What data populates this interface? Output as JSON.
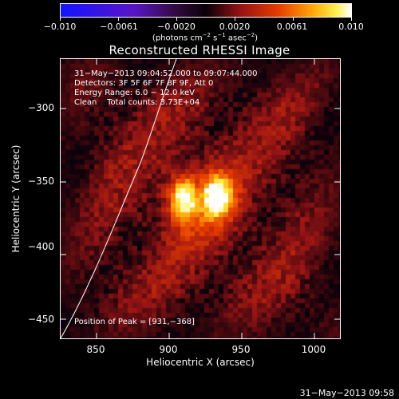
{
  "colorbar": {
    "tick_labels": [
      "−0.010",
      "−0.0061",
      "−0.0020",
      "0.0020",
      "0.0061",
      "0.010"
    ],
    "units_prefix": "(photons cm",
    "units_sup1": "−2",
    "units_mid1": " s",
    "units_sup2": "−1",
    "units_mid2": " asec",
    "units_sup3": "−2",
    "units_suffix": ")"
  },
  "title": "Reconstructed RHESSI Image",
  "info": {
    "time_range": "31−May−2013 09:04:52.000 to 09:07:44.000",
    "detectors": "Detectors: 3F 5F 6F 7F 8F 9F, Att 0",
    "energy_range": "Energy Range: 6.0 − 12.0 keV",
    "clean_line": "Clean    Total counts: 3.73E+04",
    "peak_position": "Position of Peak = [931,−368]"
  },
  "axes": {
    "xlabel": "Heliocentric X (arcsec)",
    "ylabel": "Heliocentric Y (arcsec)",
    "x_ticks": [
      "850",
      "900",
      "950",
      "1000"
    ],
    "y_ticks": [
      "−300",
      "−350",
      "−400",
      "−450"
    ],
    "xlim": [
      825,
      1017
    ],
    "ylim": [
      -467,
      -275
    ]
  },
  "image": {
    "colormap": "blue-purple-red-orange-yellow-white",
    "peak_arcsec": [
      931,
      -368
    ],
    "limb_line_color": "#ffffff"
  },
  "timestamp": "31−May−2013 09:58"
}
